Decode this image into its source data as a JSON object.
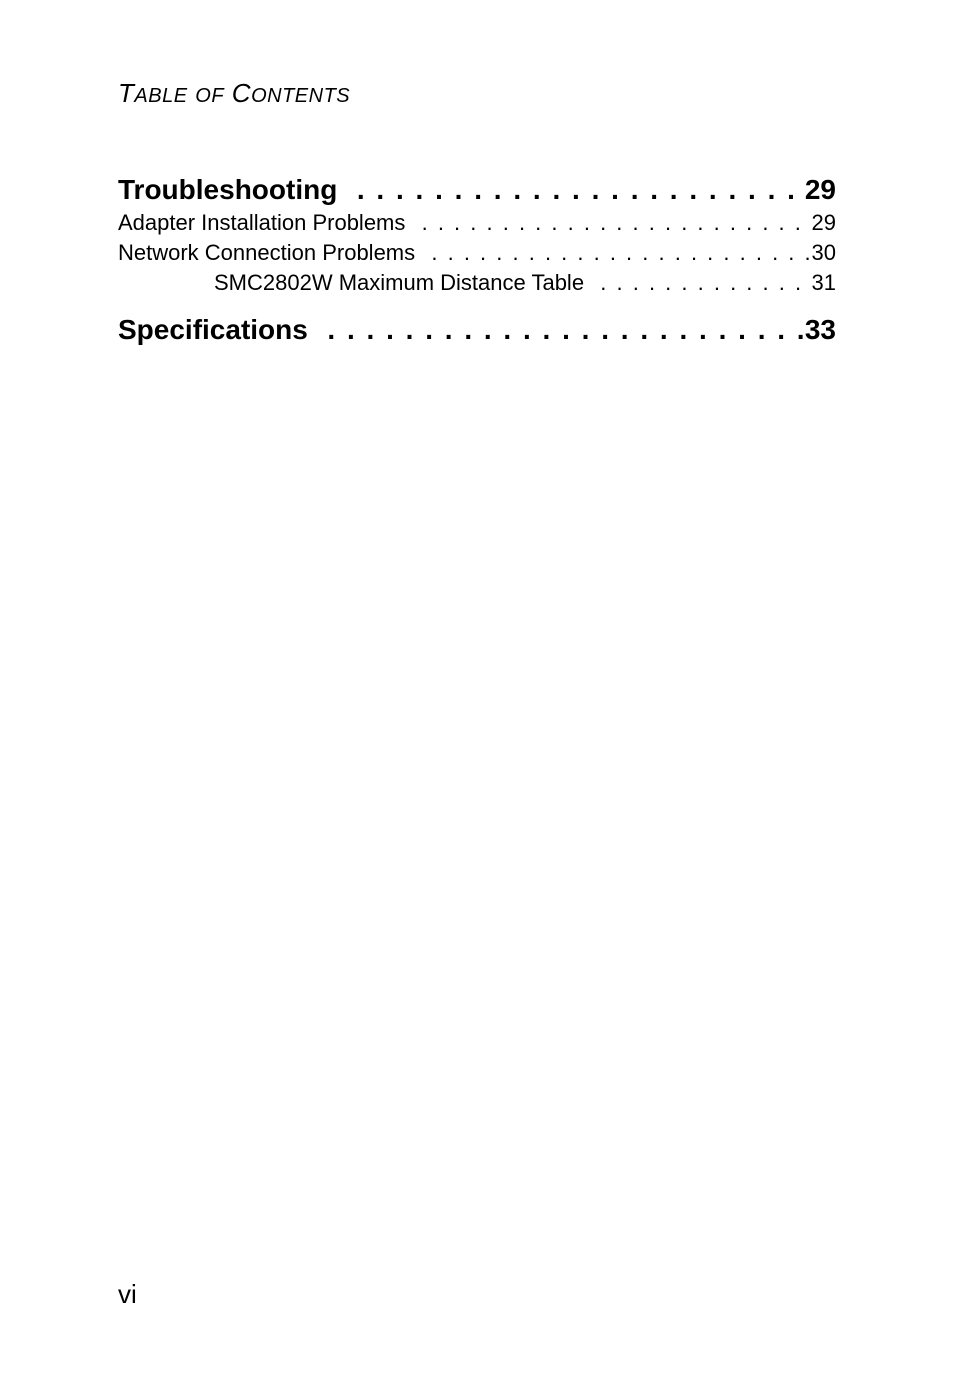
{
  "colors": {
    "background": "#ffffff",
    "text": "#000000"
  },
  "typography": {
    "family": "Arial, Helvetica, sans-serif",
    "running_head_size_pt": 20,
    "section_size_pt": 21,
    "entry_size_pt": 17,
    "page_number_size_pt": 20
  },
  "running_head": "TABLE OF CONTENTS",
  "toc": {
    "sections": [
      {
        "title": "Troubleshooting",
        "page": "29",
        "entries": [
          {
            "label": "Adapter Installation Problems",
            "page": "29",
            "indent": 0
          },
          {
            "label": "Network Connection Problems",
            "page": "30",
            "indent": 0
          },
          {
            "label": "SMC2802W Maximum Distance Table",
            "page": "31",
            "indent": 1
          }
        ]
      },
      {
        "title": "Specifications",
        "page": "33",
        "entries": []
      }
    ]
  },
  "page_number": "vi",
  "leader_char": ". "
}
